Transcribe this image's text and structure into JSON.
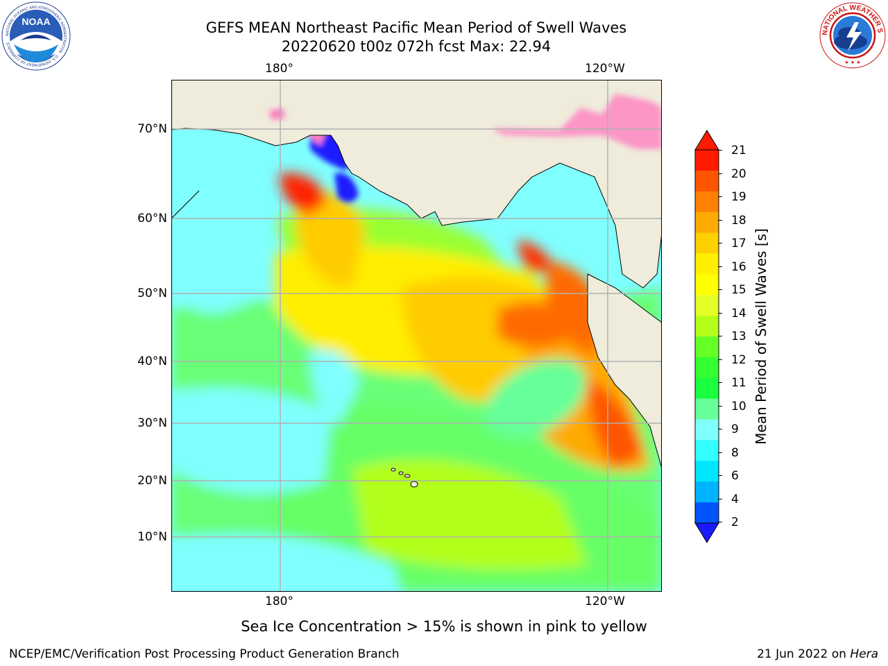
{
  "header": {
    "title_line1": "GEFS MEAN Northeast Pacific Mean Period of Swell Waves",
    "title_line2": "20220620 t00z 072h fcst   Max: 22.94"
  },
  "logos": {
    "noaa": "NOAA",
    "noaa_ring": "NATIONAL OCEANIC AND ATMOSPHERIC ADMINISTRATION · U.S. DEPARTMENT OF COMMERCE",
    "nws_ring": "NATIONAL WEATHER SERVICE"
  },
  "map": {
    "lon_labels": [
      "180°",
      "120°W"
    ],
    "lat_labels": [
      "70°N",
      "60°N",
      "50°N",
      "40°N",
      "30°N",
      "20°N",
      "10°N"
    ],
    "colors": {
      "land": "#efecdc",
      "grid": "#b0b0b0",
      "ocean_cool": "#80ffff",
      "ocean_green": "#66ff66",
      "swell_yellow": "#ffff00",
      "swell_orange": "#ff9900",
      "swell_red": "#ff2200",
      "ice_pink": "#ff80c0",
      "ice_blue": "#1010ff"
    }
  },
  "colorbar": {
    "label": "Mean Period of Swell Waves [s]",
    "ticks": [
      "21",
      "20",
      "19",
      "18",
      "17",
      "16",
      "15",
      "14",
      "13",
      "12",
      "11",
      "10",
      "9",
      "8",
      "6",
      "4",
      "2"
    ],
    "colors": [
      "#ff1a00",
      "#ff5500",
      "#ff8000",
      "#ffaa00",
      "#ffd000",
      "#ffee00",
      "#ffff00",
      "#e5ff26",
      "#b3ff1a",
      "#66ff26",
      "#33ff33",
      "#1aff40",
      "#66ff99",
      "#80ffff",
      "#33ffff",
      "#00e6ff",
      "#00b3ff",
      "#0055ff"
    ],
    "extend_top_color": "#ff1a00",
    "extend_bottom_color": "#1a1aff"
  },
  "footer": {
    "ice_note": "Sea Ice Concentration > 15% is shown in pink to yellow",
    "left": "NCEP/EMC/Verification Post Processing Product Generation Branch",
    "right_prefix": "21 Jun 2022 on ",
    "right_machine": "Hera"
  }
}
